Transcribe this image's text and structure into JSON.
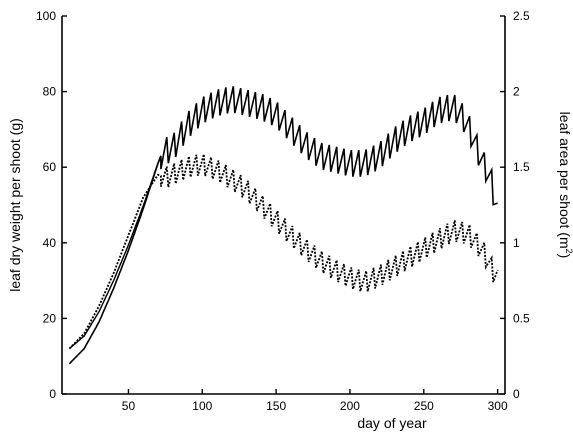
{
  "chart_data": {
    "type": "line",
    "xlabel": "day of year",
    "ylabel_left": "leaf dry weight per shoot (g)",
    "ylabel_right_prefix": "leaf area per shoot (m",
    "ylabel_right_exponent": "2",
    "ylabel_right_suffix": ")",
    "xlim": [
      5,
      305
    ],
    "ylim_left": [
      0,
      100
    ],
    "ylim_right": [
      0,
      2.5
    ],
    "xticks": [
      50,
      100,
      150,
      200,
      250,
      300
    ],
    "xtick_labels": [
      "50",
      "100",
      "150",
      "200",
      "250",
      "300"
    ],
    "yticks_left": [
      0,
      20,
      40,
      60,
      80,
      100
    ],
    "ytick_labels_left": [
      "0",
      "20",
      "40",
      "60",
      "80",
      "100"
    ],
    "yticks_right": [
      0,
      0.5,
      1,
      1.5,
      2,
      2.5
    ],
    "ytick_labels_right": [
      "0",
      "0.5",
      "1",
      "1.5",
      "2",
      "2.5"
    ],
    "series": [
      {
        "name": "leaf dry weight per shoot",
        "axis": "left",
        "style": "solid",
        "x": [
          10,
          20,
          30,
          40,
          50,
          60,
          70,
          73,
          80,
          90,
          100,
          110,
          120,
          130,
          140,
          150,
          160,
          170,
          180,
          190,
          200,
          210,
          220,
          230,
          240,
          250,
          260,
          270,
          275,
          280,
          285,
          290,
          295,
          300
        ],
        "y": [
          8,
          12,
          19,
          28,
          38,
          49,
          61,
          64,
          65,
          71,
          75,
          77,
          78,
          77,
          76,
          74,
          70,
          66,
          63,
          62,
          61,
          61,
          63,
          67,
          70,
          72,
          75,
          76,
          74,
          71,
          66,
          61,
          58,
          47
        ],
        "oscillation_amplitude": 3.5,
        "oscillation_period_days": 5
      },
      {
        "name": "leaf area per shoot",
        "axis": "right",
        "style": "dotted",
        "x": [
          10,
          20,
          30,
          40,
          50,
          60,
          70,
          75,
          80,
          90,
          100,
          110,
          120,
          130,
          140,
          150,
          160,
          170,
          180,
          190,
          200,
          210,
          220,
          230,
          240,
          250,
          260,
          270,
          280,
          290,
          300
        ],
        "y": [
          0.3,
          0.4,
          0.58,
          0.8,
          1.05,
          1.3,
          1.45,
          1.43,
          1.45,
          1.5,
          1.52,
          1.48,
          1.42,
          1.35,
          1.25,
          1.15,
          1.05,
          0.96,
          0.88,
          0.82,
          0.77,
          0.74,
          0.78,
          0.84,
          0.9,
          0.96,
          1.02,
          1.08,
          1.06,
          0.95,
          0.75
        ],
        "oscillation_amplitude": 0.07,
        "oscillation_period_days": 5
      }
    ]
  }
}
